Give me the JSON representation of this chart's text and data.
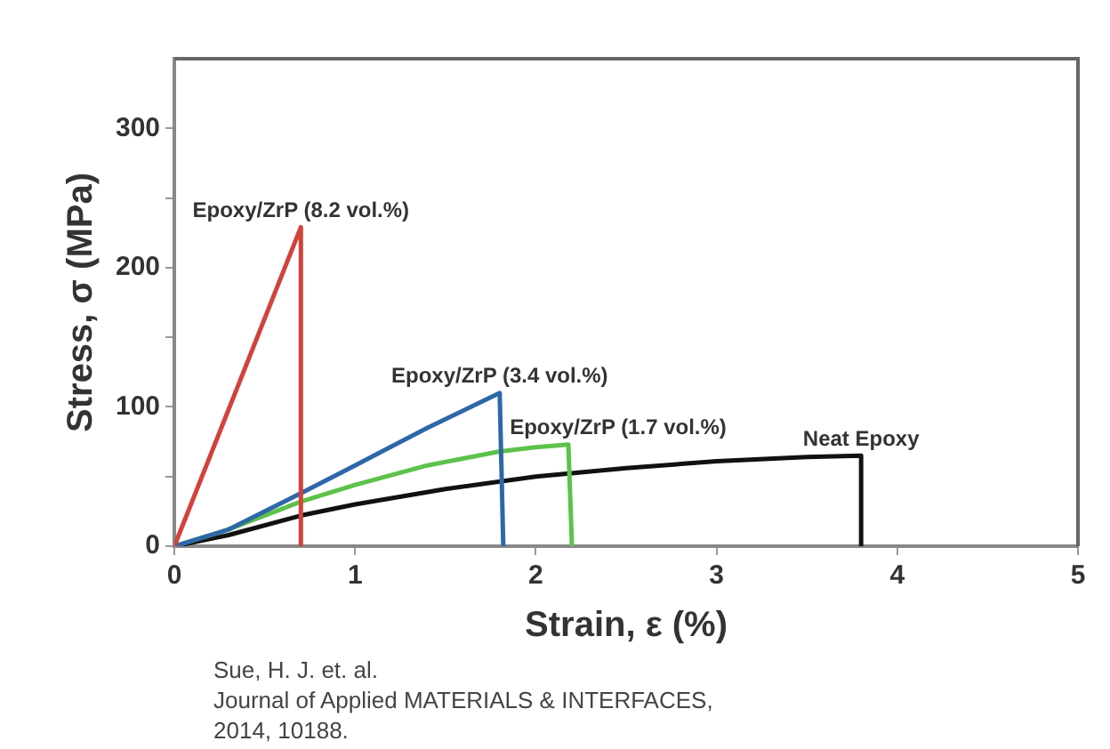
{
  "chart_data": {
    "type": "line",
    "xlabel": "Strain, ε (%)",
    "ylabel": "Stress, σ (MPa)",
    "xlim": [
      0,
      5
    ],
    "xticks": [
      0,
      1,
      2,
      3,
      4,
      5
    ],
    "ylim": [
      0,
      350
    ],
    "yticks": [
      0,
      {
        "value": 50,
        "label": null
      },
      100,
      {
        "value": 150,
        "label": null
      },
      200,
      {
        "value": 250,
        "label": null
      },
      300
    ],
    "grid": false,
    "legend": false,
    "marker": "none",
    "line_style": "solid",
    "series": [
      {
        "name": "Epoxy/ZrP (8.2 vol.%)",
        "color": "#d0433b",
        "x": [
          0,
          0.7,
          0.7
        ],
        "values": [
          0,
          229,
          0
        ]
      },
      {
        "name": "Epoxy/ZrP (3.4 vol.%)",
        "color": "#2e67a8",
        "x": [
          0,
          0.3,
          0.7,
          1.0,
          1.4,
          1.8,
          1.82
        ],
        "values": [
          0,
          12,
          38,
          58,
          85,
          110,
          0
        ]
      },
      {
        "name": "Epoxy/ZrP (1.7 vol.%)",
        "color": "#5cc24a",
        "x": [
          0,
          0.3,
          0.7,
          1.0,
          1.4,
          1.8,
          2.0,
          2.18,
          2.2
        ],
        "values": [
          0,
          12,
          32,
          44,
          58,
          68,
          71,
          73,
          0
        ]
      },
      {
        "name": "Neat Epoxy",
        "color": "#111111",
        "x": [
          0,
          0.3,
          0.7,
          1.0,
          1.5,
          2.0,
          2.5,
          3.0,
          3.5,
          3.8,
          3.8
        ],
        "values": [
          0,
          8,
          22,
          30,
          41,
          50,
          56,
          61,
          64,
          65,
          0
        ]
      }
    ],
    "annotations": [
      "Sue, H. J. et. al.",
      "Journal of Applied MATERIALS & INTERFACES,",
      "2014, 10188."
    ]
  }
}
